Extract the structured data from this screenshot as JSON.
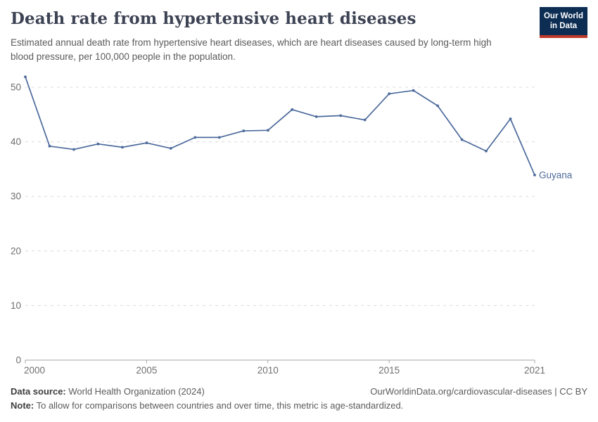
{
  "header": {
    "title": "Death rate from hypertensive heart diseases",
    "subtitle": "Estimated annual death rate from hypertensive heart diseases, which are heart diseases caused by long-term high blood pressure, per 100,000 people in the population.",
    "logo": {
      "line1": "Our World",
      "line2": "in Data"
    }
  },
  "chart_data": {
    "type": "line",
    "title": "Death rate from hypertensive heart diseases",
    "xlabel": "",
    "ylabel": "",
    "x": [
      2000,
      2001,
      2002,
      2003,
      2004,
      2005,
      2006,
      2007,
      2008,
      2009,
      2010,
      2011,
      2012,
      2013,
      2014,
      2015,
      2016,
      2017,
      2018,
      2019,
      2020,
      2021
    ],
    "series": [
      {
        "name": "Guyana",
        "values": [
          51.9,
          39.2,
          38.6,
          39.6,
          39.0,
          39.8,
          38.8,
          40.8,
          40.8,
          42.0,
          42.1,
          45.9,
          44.6,
          44.8,
          44.0,
          48.8,
          49.4,
          46.6,
          40.4,
          38.3,
          44.2,
          33.9
        ]
      }
    ],
    "x_ticks": [
      2000,
      2005,
      2010,
      2015,
      2021
    ],
    "y_ticks": [
      0,
      10,
      20,
      30,
      40,
      50
    ],
    "xlim": [
      2000,
      2021
    ],
    "ylim": [
      0,
      52
    ],
    "grid": true,
    "legend_position": "end-of-line",
    "line_color": "#4c6a9c",
    "tick_color": "#6e6e6e"
  },
  "footer": {
    "source_label": "Data source:",
    "source_text": " World Health Organization (2024)",
    "link_text": "OurWorldinData.org/cardiovascular-diseases | CC BY",
    "note_label": "Note:",
    "note_text": " To allow for comparisons between countries and over time, this metric is age-standardized."
  }
}
